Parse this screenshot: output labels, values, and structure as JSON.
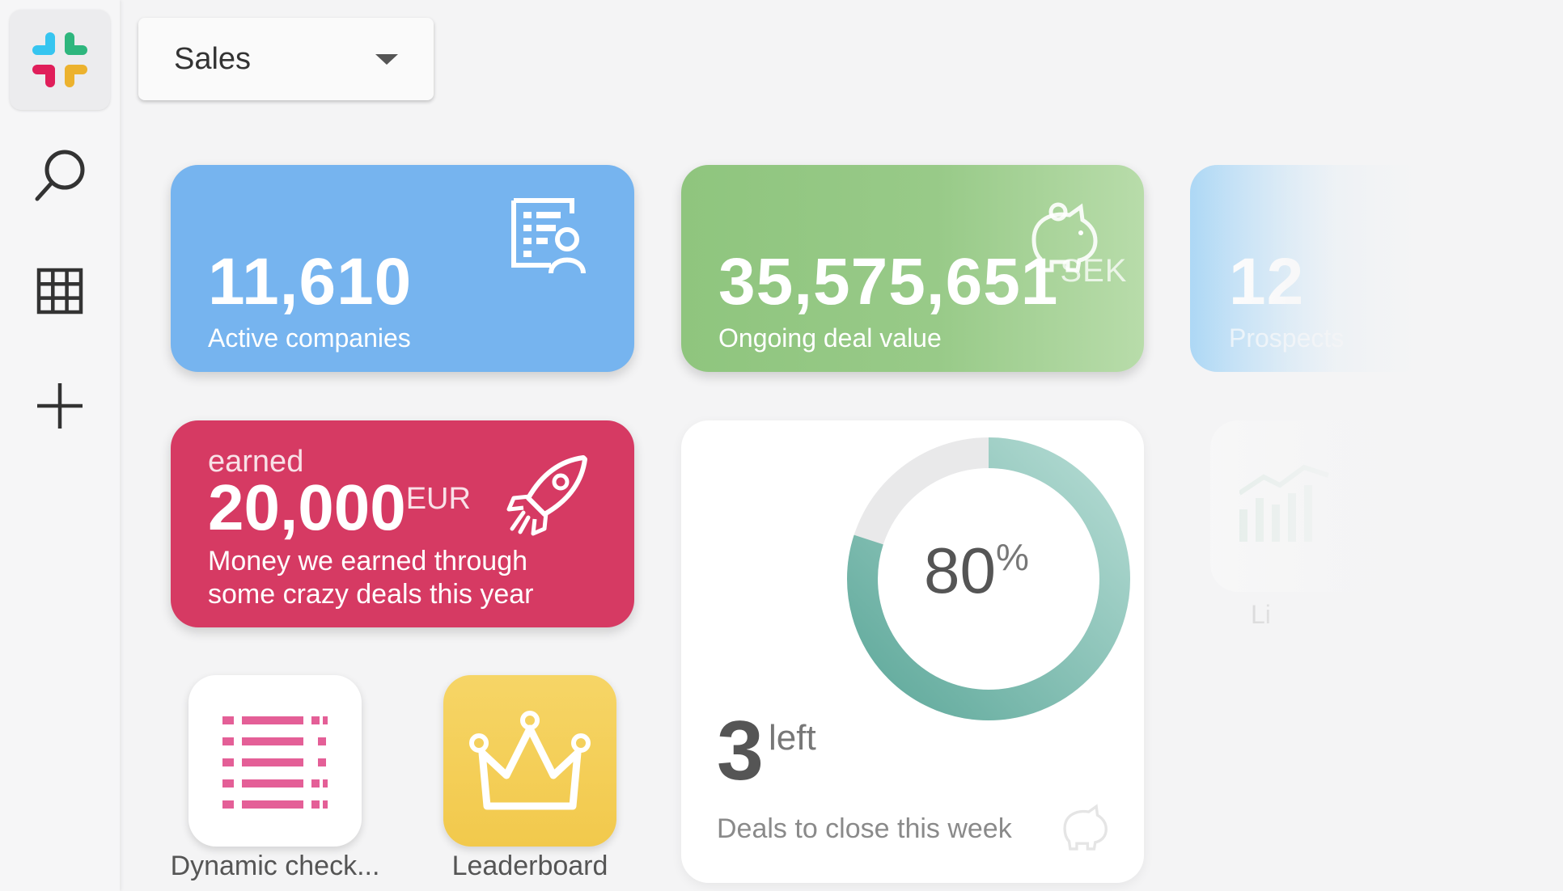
{
  "sidebar": {
    "logo": "slack-logo",
    "icons": [
      "search-icon",
      "grid-icon",
      "plus-icon"
    ]
  },
  "dropdown": {
    "value": "Sales"
  },
  "kpis": [
    {
      "value": "11,610",
      "label": "Active companies",
      "color": "#76b4ef",
      "icon": "company-contact-icon"
    },
    {
      "value": "35,575,651",
      "unit": "SEK",
      "label": "Ongoing deal value",
      "color": "#92c681",
      "icon": "piggy-bank-icon"
    },
    {
      "value": "12",
      "label": "Prospects",
      "color": "#a9d6f5"
    }
  ],
  "earned_card": {
    "prefix": "earned",
    "value": "20,000",
    "unit": "EUR",
    "label": "Money we earned through some crazy deals this year",
    "color": "#d63a63",
    "icon": "rocket-icon"
  },
  "deals_card": {
    "percent": "80",
    "percent_symbol": "%",
    "progress": 0.8,
    "count": "3",
    "count_suffix": "left",
    "label": "Deals to close this week"
  },
  "apps": [
    {
      "label": "Dynamic check...",
      "icon": "checklist-icon",
      "bg": "#ffffff"
    },
    {
      "label": "Leaderboard",
      "icon": "crown-icon",
      "bg": "#f5cf5b"
    }
  ],
  "faded_tiles": [
    {
      "label": "Li",
      "icon": "line-chart-icon"
    }
  ],
  "colors": {
    "teal": "#5fa99b",
    "red": "#d63a63",
    "blue": "#76b4ef",
    "green": "#92c681"
  }
}
